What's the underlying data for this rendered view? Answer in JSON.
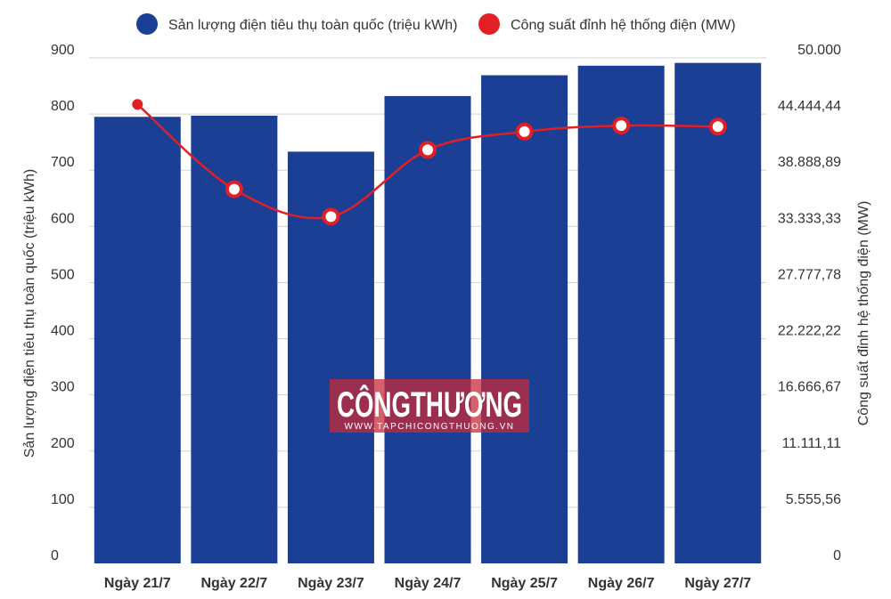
{
  "chart_data": {
    "type": "bar+line",
    "categories": [
      "Ngày 21/7",
      "Ngày 22/7",
      "Ngày 23/7",
      "Ngày 24/7",
      "Ngày 25/7",
      "Ngày 26/7",
      "Ngày 27/7"
    ],
    "series": [
      {
        "name": "Sản lượng điện tiêu thụ toàn quốc (triệu kWh)",
        "type": "bar",
        "axis": "left",
        "color": "#1a3f95",
        "values": [
          795,
          797,
          733,
          832,
          869,
          886,
          891
        ]
      },
      {
        "name": "Công suất đỉnh hệ thống điện (MW)",
        "type": "line",
        "axis": "right",
        "color": "#e31e24",
        "values": [
          45400,
          37000,
          34300,
          40900,
          42700,
          43300,
          43200
        ]
      }
    ],
    "ylabel": "Sản lượng điện tiêu thụ toàn quốc (triệu kWh)",
    "ylim": [
      0,
      900
    ],
    "yticks": [
      "0",
      "100",
      "200",
      "300",
      "400",
      "500",
      "600",
      "700",
      "800",
      "900"
    ],
    "y2label": "Công suất đỉnh hệ thống điện (MW)",
    "y2lim": [
      0,
      50000
    ],
    "y2ticks": [
      "0",
      "5.555,56",
      "11.111,11",
      "16.666,67",
      "22.222,22",
      "27.777,78",
      "33.333,33",
      "38.888,89",
      "44.444,44",
      "50.000"
    ],
    "legend": "top",
    "grid": true
  },
  "watermark": {
    "logo_text": "CÔNGTHƯƠNG",
    "url": "WWW.TAPCHICONGTHUONG.VN"
  }
}
